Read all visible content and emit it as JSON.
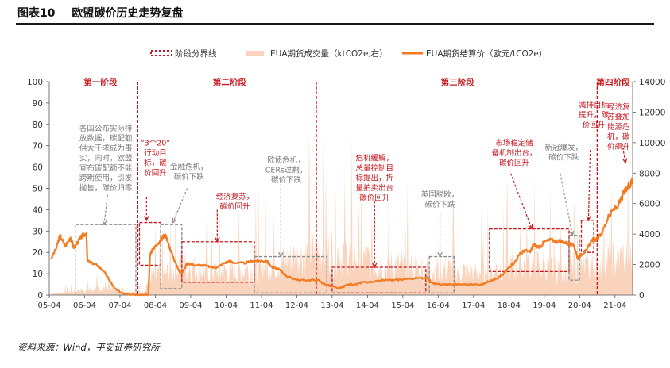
{
  "figure": {
    "number": "图表10",
    "title": "欧盟碳价历史走势复盘",
    "source": "资料来源：Wind，平安证券研究所"
  },
  "colors": {
    "price_line": "#f47a20",
    "volume_area": "#f9d3bc",
    "phase_line": "#c8161d",
    "red_box": "#c8161d",
    "grey_box": "#8c8c8c",
    "red_text": "#c8161d",
    "grey_text": "#7a7a7a"
  },
  "chart_data": {
    "type": "line",
    "title": "",
    "legend": {
      "position": "top",
      "items": [
        {
          "label": "阶段分界线",
          "kind": "phase-line"
        },
        {
          "label": "EUA期货成交量（ktCO2e,右）",
          "kind": "area"
        },
        {
          "label": "EUA期货结算价（欧元/tCO2e）",
          "kind": "line"
        }
      ]
    },
    "x_ticks": [
      "05-04",
      "06-04",
      "07-04",
      "08-04",
      "09-04",
      "10-04",
      "11-04",
      "12-04",
      "13-04",
      "14-04",
      "15-04",
      "16-04",
      "17-04",
      "18-04",
      "19-04",
      "20-04",
      "21-04"
    ],
    "x_range": [
      2005.25,
      2021.75
    ],
    "y_left": {
      "min": 0,
      "max": 100,
      "ticks": [
        0,
        10,
        20,
        30,
        40,
        50,
        60,
        70,
        80,
        90,
        100
      ]
    },
    "y_right": {
      "min": 0,
      "max": 14000,
      "ticks": [
        0,
        2000,
        4000,
        6000,
        8000,
        10000,
        12000,
        14000
      ]
    },
    "series": [
      {
        "name": "EUA期货结算价（欧元/tCO2e）",
        "axis": "left",
        "points": [
          [
            2005.3,
            17
          ],
          [
            2005.45,
            22
          ],
          [
            2005.55,
            28
          ],
          [
            2005.7,
            23
          ],
          [
            2005.85,
            27
          ],
          [
            2005.95,
            22
          ],
          [
            2006.1,
            26
          ],
          [
            2006.2,
            28
          ],
          [
            2006.3,
            29
          ],
          [
            2006.33,
            16
          ],
          [
            2006.45,
            15
          ],
          [
            2006.6,
            14
          ],
          [
            2006.8,
            11
          ],
          [
            2006.95,
            7
          ],
          [
            2007.1,
            3
          ],
          [
            2007.3,
            1
          ],
          [
            2007.6,
            0.3
          ],
          [
            2007.9,
            0.1
          ],
          [
            2008.05,
            0.1
          ],
          [
            2008.1,
            19
          ],
          [
            2008.2,
            22
          ],
          [
            2008.35,
            24
          ],
          [
            2008.45,
            27
          ],
          [
            2008.55,
            28
          ],
          [
            2008.62,
            24
          ],
          [
            2008.75,
            18
          ],
          [
            2008.9,
            12
          ],
          [
            2009.0,
            10
          ],
          [
            2009.15,
            15
          ],
          [
            2009.35,
            14
          ],
          [
            2009.6,
            14
          ],
          [
            2009.85,
            13
          ],
          [
            2010.0,
            13
          ],
          [
            2010.2,
            15
          ],
          [
            2010.35,
            16
          ],
          [
            2010.5,
            15
          ],
          [
            2010.8,
            15
          ],
          [
            2011.0,
            16
          ],
          [
            2011.2,
            16
          ],
          [
            2011.4,
            16
          ],
          [
            2011.55,
            13
          ],
          [
            2011.75,
            12
          ],
          [
            2011.95,
            9
          ],
          [
            2012.1,
            8
          ],
          [
            2012.3,
            7
          ],
          [
            2012.6,
            7
          ],
          [
            2012.85,
            7
          ],
          [
            2013.05,
            5
          ],
          [
            2013.25,
            4
          ],
          [
            2013.45,
            3
          ],
          [
            2013.7,
            5
          ],
          [
            2013.95,
            5
          ],
          [
            2014.1,
            6
          ],
          [
            2014.4,
            6
          ],
          [
            2014.7,
            7
          ],
          [
            2015.0,
            7
          ],
          [
            2015.3,
            7.5
          ],
          [
            2015.7,
            8
          ],
          [
            2015.95,
            8
          ],
          [
            2016.05,
            6
          ],
          [
            2016.2,
            5
          ],
          [
            2016.4,
            5
          ],
          [
            2016.6,
            5
          ],
          [
            2016.9,
            5
          ],
          [
            2017.2,
            5
          ],
          [
            2017.5,
            5
          ],
          [
            2017.75,
            7
          ],
          [
            2017.95,
            8
          ],
          [
            2018.1,
            10
          ],
          [
            2018.25,
            13
          ],
          [
            2018.4,
            15
          ],
          [
            2018.55,
            19
          ],
          [
            2018.7,
            21
          ],
          [
            2018.85,
            20
          ],
          [
            2018.95,
            24
          ],
          [
            2019.1,
            22
          ],
          [
            2019.25,
            25
          ],
          [
            2019.45,
            26
          ],
          [
            2019.65,
            25
          ],
          [
            2019.8,
            25
          ],
          [
            2019.95,
            24
          ],
          [
            2020.1,
            23
          ],
          [
            2020.2,
            17
          ],
          [
            2020.3,
            19
          ],
          [
            2020.45,
            21
          ],
          [
            2020.6,
            26
          ],
          [
            2020.75,
            26
          ],
          [
            2020.9,
            30
          ],
          [
            2021.05,
            36
          ],
          [
            2021.2,
            40
          ],
          [
            2021.35,
            42
          ],
          [
            2021.5,
            48
          ],
          [
            2021.6,
            50
          ],
          [
            2021.7,
            52
          ],
          [
            2021.73,
            55
          ]
        ]
      },
      {
        "name": "EUA期货成交量（ktCO2e,右）",
        "axis": "right",
        "points": [
          [
            2005.3,
            100
          ],
          [
            2006.0,
            300
          ],
          [
            2006.5,
            400
          ],
          [
            2007.0,
            500
          ],
          [
            2007.5,
            300
          ],
          [
            2007.9,
            250
          ],
          [
            2008.1,
            1300
          ],
          [
            2008.6,
            1600
          ],
          [
            2009.0,
            2200
          ],
          [
            2009.5,
            1900
          ],
          [
            2010.0,
            1700
          ],
          [
            2010.5,
            1700
          ],
          [
            2011.0,
            1900
          ],
          [
            2011.5,
            2200
          ],
          [
            2012.0,
            2600
          ],
          [
            2012.5,
            3000
          ],
          [
            2013.0,
            3300
          ],
          [
            2013.5,
            3000
          ],
          [
            2014.0,
            2800
          ],
          [
            2014.5,
            2300
          ],
          [
            2015.0,
            2200
          ],
          [
            2015.5,
            2000
          ],
          [
            2016.0,
            1900
          ],
          [
            2016.5,
            1900
          ],
          [
            2017.0,
            1700
          ],
          [
            2017.5,
            1700
          ],
          [
            2018.0,
            2000
          ],
          [
            2018.5,
            2200
          ],
          [
            2019.0,
            2200
          ],
          [
            2019.5,
            1900
          ],
          [
            2020.0,
            2000
          ],
          [
            2020.5,
            2000
          ],
          [
            2021.0,
            2500
          ],
          [
            2021.5,
            2700
          ],
          [
            2021.75,
            2800
          ]
        ]
      }
    ],
    "phase_dividers": [
      2007.75,
      2012.8,
      2020.75
    ],
    "phases": [
      {
        "label": "第一阶段",
        "x": 2006.7
      },
      {
        "label": "第二阶段",
        "x": 2010.35
      },
      {
        "label": "第三阶段",
        "x": 2016.8
      },
      {
        "label": "第四阶段",
        "x": 2021.2
      }
    ],
    "annotations": [
      {
        "id": "a1",
        "color": "grey",
        "lines": [
          "各国公布实际排",
          "放数据，碳配额",
          "供大于求成为事",
          "实，同时，欧盟",
          "宣布碳配额不能",
          "跨期使用，引发",
          "抛售，碳价归零"
        ],
        "x": 2006.85,
        "y": 77
      },
      {
        "id": "a2",
        "color": "red",
        "lines": [
          "“3个20”",
          "行动目",
          "标，碳",
          "价回升"
        ],
        "x": 2008.25,
        "y": 70
      },
      {
        "id": "a3",
        "color": "grey",
        "lines": [
          "金融危机，",
          "碳价下跌"
        ],
        "x": 2009.2,
        "y": 59
      },
      {
        "id": "a4",
        "color": "red",
        "lines": [
          "经济复苏，",
          "碳价回升"
        ],
        "x": 2010.5,
        "y": 45
      },
      {
        "id": "a5",
        "color": "grey",
        "lines": [
          "欧债危机，",
          "CERs过剩，",
          "碳价下跌"
        ],
        "x": 2011.95,
        "y": 62
      },
      {
        "id": "a6",
        "color": "red",
        "lines": [
          "危机缓解，",
          "总量控制目",
          "标提出，折",
          "量拍卖出台",
          "碳价回升"
        ],
        "x": 2014.45,
        "y": 63
      },
      {
        "id": "a7",
        "color": "grey",
        "lines": [
          "英国脱欧，",
          "碳价下跌"
        ],
        "x": 2016.3,
        "y": 46
      },
      {
        "id": "a8",
        "color": "red",
        "lines": [
          "市场稳定储",
          "备机制出台，",
          "碳价回升"
        ],
        "x": 2018.4,
        "y": 70
      },
      {
        "id": "a9",
        "color": "grey",
        "lines": [
          "新冠爆发，",
          "碳价下跌"
        ],
        "x": 2019.8,
        "y": 68
      },
      {
        "id": "a10",
        "color": "red",
        "lines": [
          "减排目标",
          "提升，碳",
          "价回升"
        ],
        "x": 2020.65,
        "y": 88
      },
      {
        "id": "a11",
        "color": "red",
        "lines": [
          "经济复",
          "苏叠加",
          "能源危",
          "机，碳",
          "价飙升"
        ],
        "x": 2021.35,
        "y": 87
      }
    ],
    "boxes": [
      {
        "color": "grey",
        "x0": 2006.0,
        "x1": 2007.7,
        "y0": 0,
        "y1": 33
      },
      {
        "color": "red",
        "x0": 2007.8,
        "x1": 2008.4,
        "y0": 14,
        "y1": 34
      },
      {
        "color": "grey",
        "x0": 2008.4,
        "x1": 2009.0,
        "y0": 3,
        "y1": 33
      },
      {
        "color": "red",
        "x0": 2009.0,
        "x1": 2011.05,
        "y0": 6,
        "y1": 25
      },
      {
        "color": "grey",
        "x0": 2011.05,
        "x1": 2013.1,
        "y0": 1,
        "y1": 18
      },
      {
        "color": "red",
        "x0": 2013.25,
        "x1": 2015.9,
        "y0": 1,
        "y1": 13
      },
      {
        "color": "grey",
        "x0": 2016.0,
        "x1": 2016.7,
        "y0": 1,
        "y1": 18
      },
      {
        "color": "red",
        "x0": 2017.7,
        "x1": 2019.95,
        "y0": 11,
        "y1": 31
      },
      {
        "color": "grey",
        "x0": 2019.95,
        "x1": 2020.25,
        "y0": 7,
        "y1": 28
      },
      {
        "color": "red",
        "x0": 2020.3,
        "x1": 2020.65,
        "y0": 20,
        "y1": 35
      }
    ],
    "arrows": [
      {
        "color": "grey",
        "from": [
          2006.9,
          47
        ],
        "to": [
          2006.8,
          33
        ]
      },
      {
        "color": "red",
        "from": [
          2008.0,
          46
        ],
        "to": [
          2008.0,
          35
        ]
      },
      {
        "color": "grey",
        "from": [
          2009.15,
          50
        ],
        "to": [
          2008.75,
          34
        ]
      },
      {
        "color": "red",
        "from": [
          2010.0,
          40
        ],
        "to": [
          2010.0,
          25
        ]
      },
      {
        "color": "grey",
        "from": [
          2011.8,
          52
        ],
        "to": [
          2011.8,
          18
        ]
      },
      {
        "color": "red",
        "from": [
          2014.45,
          44
        ],
        "to": [
          2014.45,
          13
        ]
      },
      {
        "color": "grey",
        "from": [
          2016.3,
          38
        ],
        "to": [
          2016.3,
          18
        ]
      },
      {
        "color": "red",
        "from": [
          2018.3,
          57
        ],
        "to": [
          2018.9,
          31
        ]
      },
      {
        "color": "grey",
        "from": [
          2019.7,
          57
        ],
        "to": [
          2020.05,
          28
        ]
      },
      {
        "color": "red",
        "from": [
          2020.55,
          68
        ],
        "to": [
          2020.5,
          35
        ]
      },
      {
        "color": "red",
        "from": [
          2021.45,
          71
        ],
        "to": [
          2021.55,
          62
        ]
      }
    ]
  }
}
